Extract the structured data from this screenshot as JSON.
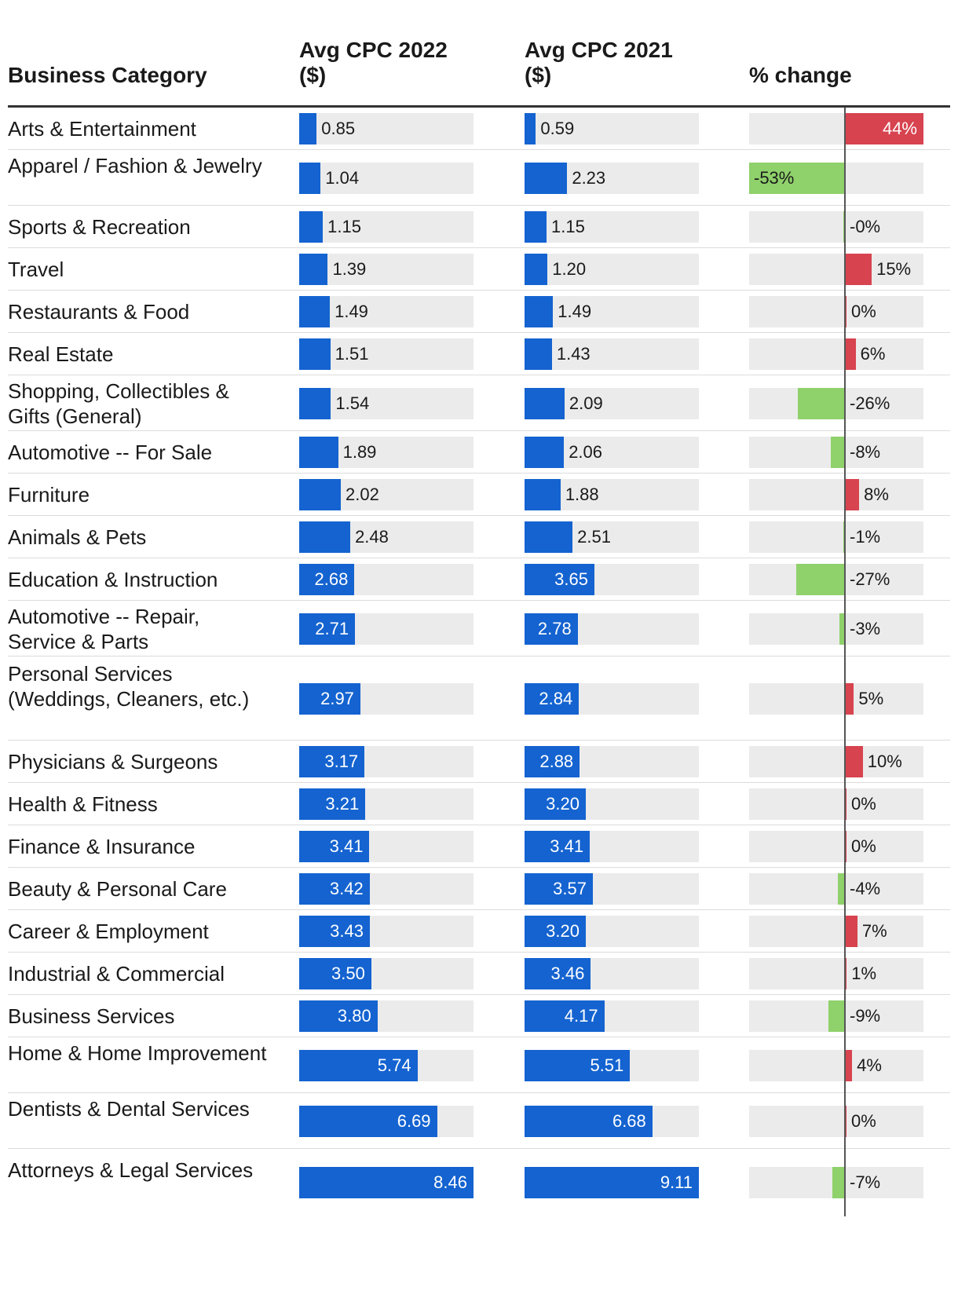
{
  "colors": {
    "bar": "#1463d0",
    "positive": "#d7434f",
    "negative": "#8fd16b",
    "track": "#ebebeb"
  },
  "headers": {
    "category": "Business Category",
    "cpc2022": "Avg CPC 2022\n($)",
    "cpc2021": "Avg CPC 2021\n($)",
    "change": "% change"
  },
  "chart_data": {
    "type": "table",
    "columns": [
      "Business Category",
      "Avg CPC 2022 ($)",
      "Avg CPC 2021 ($)",
      "% change"
    ],
    "rows": [
      {
        "category": "Arts & Entertainment",
        "cpc2022": "0.85",
        "cpc2021": "0.59",
        "change": 44,
        "change_label": "44%"
      },
      {
        "category": "Apparel / Fashion & Jewelry",
        "cpc2022": "1.04",
        "cpc2021": "2.23",
        "change": -53,
        "change_label": "-53%"
      },
      {
        "category": "Sports & Recreation",
        "cpc2022": "1.15",
        "cpc2021": "1.15",
        "change": -0.3,
        "change_label": "-0%"
      },
      {
        "category": "Travel",
        "cpc2022": "1.39",
        "cpc2021": "1.20",
        "change": 15,
        "change_label": "15%"
      },
      {
        "category": "Restaurants & Food",
        "cpc2022": "1.49",
        "cpc2021": "1.49",
        "change": 0.2,
        "change_label": "0%"
      },
      {
        "category": "Real Estate",
        "cpc2022": "1.51",
        "cpc2021": "1.43",
        "change": 6,
        "change_label": "6%"
      },
      {
        "category": "Shopping, Collectibles & Gifts (General)",
        "cpc2022": "1.54",
        "cpc2021": "2.09",
        "change": -26,
        "change_label": "-26%"
      },
      {
        "category": "Automotive -- For Sale",
        "cpc2022": "1.89",
        "cpc2021": "2.06",
        "change": -8,
        "change_label": "-8%"
      },
      {
        "category": "Furniture",
        "cpc2022": "2.02",
        "cpc2021": "1.88",
        "change": 8,
        "change_label": "8%"
      },
      {
        "category": "Animals & Pets",
        "cpc2022": "2.48",
        "cpc2021": "2.51",
        "change": -1,
        "change_label": "-1%"
      },
      {
        "category": "Education & Instruction",
        "cpc2022": "2.68",
        "cpc2021": "3.65",
        "change": -27,
        "change_label": "-27%"
      },
      {
        "category": "Automotive -- Repair, Service & Parts",
        "cpc2022": "2.71",
        "cpc2021": "2.78",
        "change": -3,
        "change_label": "-3%"
      },
      {
        "category": "Personal Services (Weddings, Cleaners, etc.)",
        "cpc2022": "2.97",
        "cpc2021": "2.84",
        "change": 5,
        "change_label": "5%"
      },
      {
        "category": "Physicians & Surgeons",
        "cpc2022": "3.17",
        "cpc2021": "2.88",
        "change": 10,
        "change_label": "10%"
      },
      {
        "category": "Health & Fitness",
        "cpc2022": "3.21",
        "cpc2021": "3.20",
        "change": 0.3,
        "change_label": "0%"
      },
      {
        "category": "Finance & Insurance",
        "cpc2022": "3.41",
        "cpc2021": "3.41",
        "change": 0.1,
        "change_label": "0%"
      },
      {
        "category": "Beauty & Personal Care",
        "cpc2022": "3.42",
        "cpc2021": "3.57",
        "change": -4,
        "change_label": "-4%"
      },
      {
        "category": "Career & Employment",
        "cpc2022": "3.43",
        "cpc2021": "3.20",
        "change": 7,
        "change_label": "7%"
      },
      {
        "category": "Industrial & Commercial",
        "cpc2022": "3.50",
        "cpc2021": "3.46",
        "change": 1,
        "change_label": "1%"
      },
      {
        "category": "Business Services",
        "cpc2022": "3.80",
        "cpc2021": "4.17",
        "change": -9,
        "change_label": "-9%"
      },
      {
        "category": "Home & Home Improvement",
        "cpc2022": "5.74",
        "cpc2021": "5.51",
        "change": 4,
        "change_label": "4%"
      },
      {
        "category": "Dentists & Dental Services",
        "cpc2022": "6.69",
        "cpc2021": "6.68",
        "change": 0.1,
        "change_label": "0%"
      },
      {
        "category": "Attorneys & Legal Services",
        "cpc2022": "8.46",
        "cpc2021": "9.11",
        "change": -7,
        "change_label": "-7%"
      }
    ],
    "cpc_max_2022": 8.46,
    "cpc_max_2021": 9.11,
    "change_range": [
      -53,
      44
    ]
  }
}
